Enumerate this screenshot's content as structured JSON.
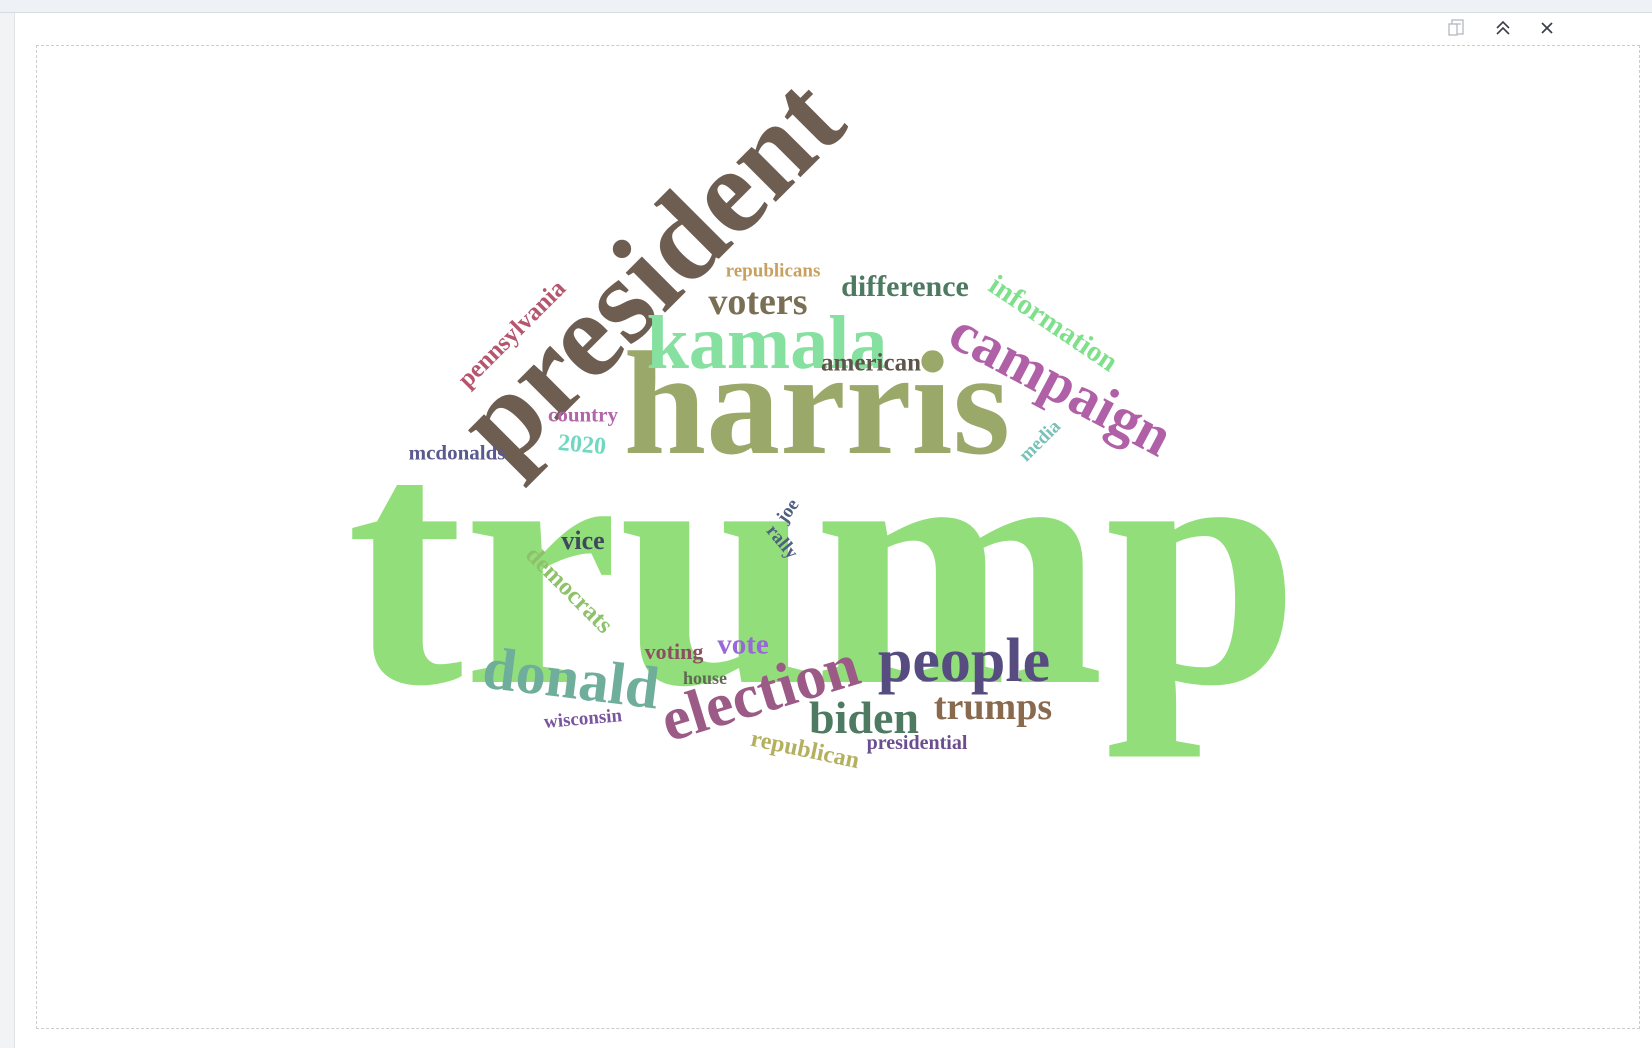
{
  "toolbar": {
    "icons": [
      "document-icon",
      "collapse-up-icon",
      "close-icon"
    ]
  },
  "wordcloud": {
    "words": [
      {
        "text": "trump",
        "color": "#92de7a"
      },
      {
        "text": "harris",
        "color": "#9aa86a"
      },
      {
        "text": "president",
        "color": "#6e5e52"
      },
      {
        "text": "kamala",
        "color": "#86e0a0"
      },
      {
        "text": "campaign",
        "color": "#b060a6"
      },
      {
        "text": "people",
        "color": "#564c80"
      },
      {
        "text": "election",
        "color": "#9c5a86"
      },
      {
        "text": "donald",
        "color": "#6fae9a"
      },
      {
        "text": "biden",
        "color": "#4f7a62"
      },
      {
        "text": "trumps",
        "color": "#8a6a4e"
      },
      {
        "text": "voters",
        "color": "#7a6e54"
      },
      {
        "text": "difference",
        "color": "#4f7a62"
      },
      {
        "text": "information",
        "color": "#7ee08a"
      },
      {
        "text": "pennsylvania",
        "color": "#b5566e"
      },
      {
        "text": "american",
        "color": "#5e544a"
      },
      {
        "text": "democrats",
        "color": "#8ec26a"
      },
      {
        "text": "republicans",
        "color": "#c8a060"
      },
      {
        "text": "vice",
        "color": "#3e4a5a"
      },
      {
        "text": "mcdonalds",
        "color": "#5a5a90"
      },
      {
        "text": "country",
        "color": "#b266a8"
      },
      {
        "text": "2020",
        "color": "#70d8c0"
      },
      {
        "text": "media",
        "color": "#78c2b8"
      },
      {
        "text": "joe",
        "color": "#506080"
      },
      {
        "text": "rally",
        "color": "#506080"
      },
      {
        "text": "voting",
        "color": "#8a5060"
      },
      {
        "text": "vote",
        "color": "#9a68d6"
      },
      {
        "text": "house",
        "color": "#5e6a52"
      },
      {
        "text": "wisconsin",
        "color": "#7a56a0"
      },
      {
        "text": "republican",
        "color": "#b4b060"
      },
      {
        "text": "presidential",
        "color": "#6a4e90"
      }
    ]
  }
}
